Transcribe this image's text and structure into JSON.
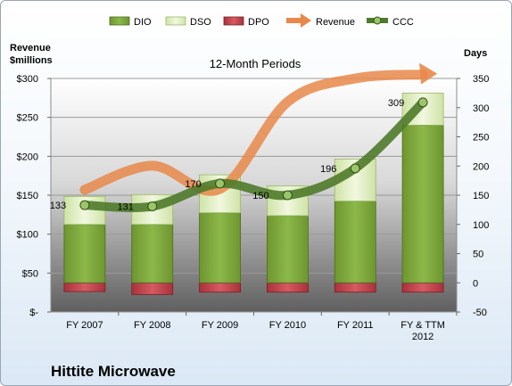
{
  "colors": {
    "DIO": "#7fa63a",
    "DIO_light": "#b8d882",
    "DSO": "#e2efc4",
    "DPO": "#c0404a",
    "Revenue": "#e8884a",
    "CCC": "#4f7a2a",
    "CCC_dot": "#9cc46a"
  },
  "chart_data": {
    "type": "bar",
    "title": "12-Month Periods",
    "company": "Hittite Microwave",
    "y_left_title": [
      "Revenue",
      "$millions"
    ],
    "y_right_title": "Days",
    "categories": [
      "FY 2007",
      "FY 2008",
      "FY 2009",
      "FY 2010",
      "FY 2011",
      "FY & TTM 2012"
    ],
    "category_lines": [
      [
        "FY 2007"
      ],
      [
        "FY 2008"
      ],
      [
        "FY 2009"
      ],
      [
        "FY 2010"
      ],
      [
        "FY 2011"
      ],
      [
        "FY & TTM",
        "2012"
      ]
    ],
    "legend": [
      "DIO",
      "DSO",
      "DPO",
      "Revenue",
      "CCC"
    ],
    "legend_position": "top",
    "y_left": {
      "min": 0,
      "max": 300,
      "step": 50,
      "ticks": [
        "$-",
        "$50",
        "$100",
        "$150",
        "$200",
        "$250",
        "$300"
      ]
    },
    "y_right": {
      "min": -50,
      "max": 350,
      "step": 50,
      "ticks": [
        "-50",
        "0",
        "50",
        "100",
        "150",
        "200",
        "250",
        "300",
        "350"
      ]
    },
    "series": [
      {
        "name": "DIO",
        "axis": "right",
        "kind": "stacked-bar",
        "values": [
          100,
          100,
          120,
          115,
          140,
          270
        ]
      },
      {
        "name": "DSO",
        "axis": "right",
        "kind": "stacked-bar",
        "values": [
          48,
          51,
          65,
          51,
          72,
          55
        ]
      },
      {
        "name": "DPO",
        "axis": "right",
        "kind": "negative-bar",
        "values": [
          -15,
          -20,
          -16,
          -16,
          -16,
          -16
        ]
      },
      {
        "name": "Revenue",
        "axis": "left",
        "kind": "line",
        "values": [
          157,
          188,
          158,
          270,
          300,
          305
        ]
      },
      {
        "name": "CCC",
        "axis": "right",
        "kind": "line",
        "values": [
          133,
          131,
          170,
          150,
          196,
          309
        ],
        "labels": [
          "133",
          "131",
          "170",
          "150",
          "196",
          "309"
        ]
      }
    ]
  }
}
